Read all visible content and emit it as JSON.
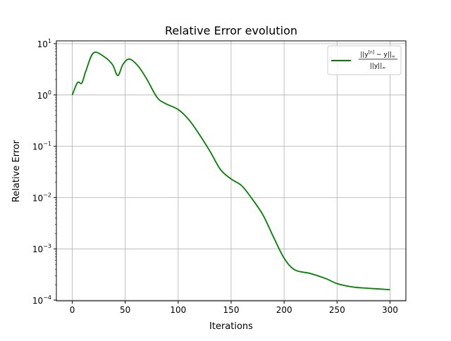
{
  "chart_data": {
    "type": "line",
    "title": "Relative Error evolution",
    "xlabel": "Iterations",
    "ylabel": "Relative Error",
    "xlim": [
      -15,
      315
    ],
    "ylim": [
      0.0001,
      10
    ],
    "yscale": "log",
    "grid": true,
    "xticks": [
      0,
      50,
      100,
      150,
      200,
      250,
      300
    ],
    "xtick_labels": [
      "0",
      "50",
      "100",
      "150",
      "200",
      "250",
      "300"
    ],
    "yticks": [
      0.0001,
      0.001,
      0.01,
      0.1,
      1,
      10
    ],
    "ytick_labels": [
      {
        "base": "10",
        "exp": "−4"
      },
      {
        "base": "10",
        "exp": "−3"
      },
      {
        "base": "10",
        "exp": "−2"
      },
      {
        "base": "10",
        "exp": "−1"
      },
      {
        "base": "10",
        "exp": "0"
      },
      {
        "base": "10",
        "exp": "1"
      }
    ],
    "legend": {
      "placement": "top-right",
      "numerator": "||y",
      "numerator_sup": "[n]",
      "numerator_rest": " − y||",
      "denominator": "||y||",
      "norm_sub": "∞"
    },
    "series": [
      {
        "name": "||y[n] − y||∞ / ||y||∞",
        "color": "#008000",
        "x": [
          0,
          5,
          9,
          13,
          20,
          30,
          38,
          43,
          48,
          54,
          62,
          70,
          80,
          88,
          100,
          110,
          120,
          130,
          140,
          150,
          160,
          170,
          180,
          190,
          200,
          210,
          225,
          240,
          250,
          265,
          280,
          300
        ],
        "y": [
          1.0,
          1.75,
          1.7,
          3.0,
          6.6,
          5.6,
          3.9,
          2.4,
          4.0,
          5.0,
          3.7,
          2.1,
          0.9,
          0.68,
          0.52,
          0.33,
          0.17,
          0.08,
          0.035,
          0.023,
          0.017,
          0.0093,
          0.0046,
          0.0017,
          0.00066,
          0.00039,
          0.00033,
          0.00026,
          0.00021,
          0.00018,
          0.00017,
          0.00016
        ]
      }
    ]
  }
}
